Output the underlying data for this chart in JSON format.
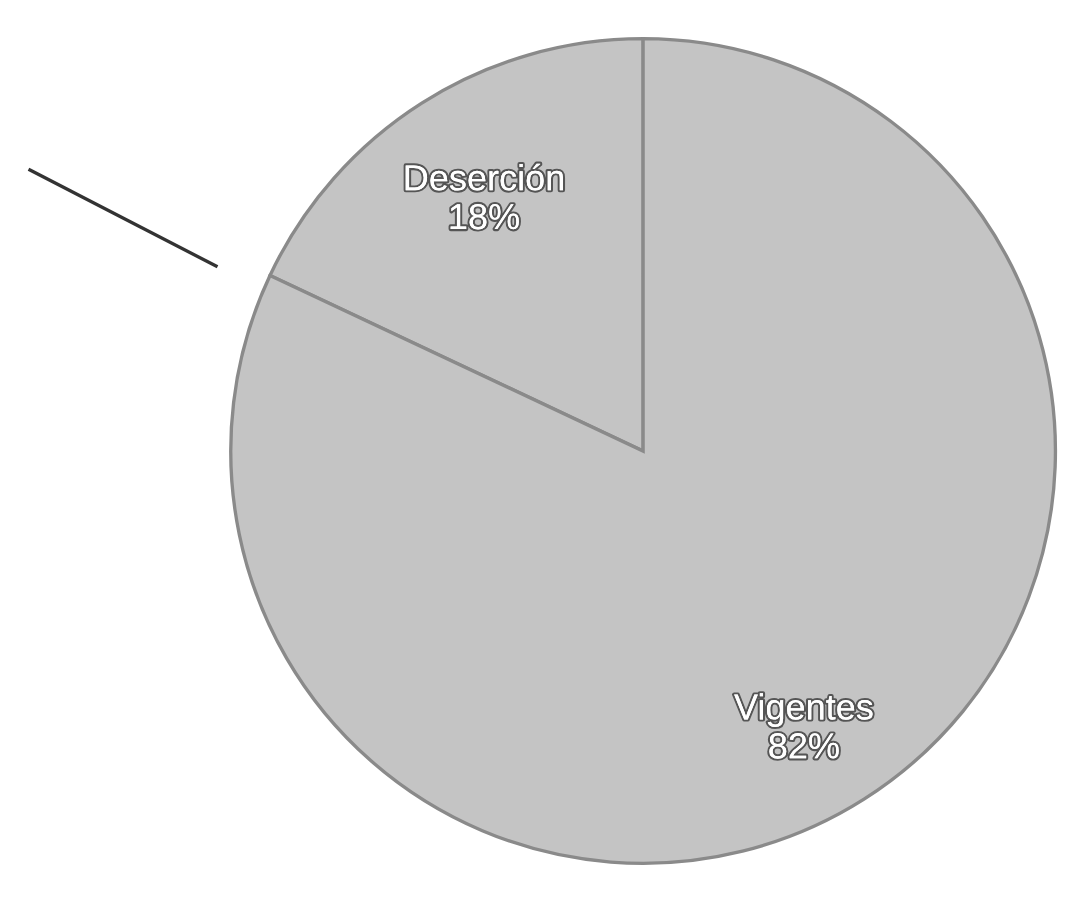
{
  "chart_data": {
    "type": "pie",
    "categories": [
      "Deserción",
      "Vigentes"
    ],
    "values": [
      18,
      82
    ],
    "colors": [
      "#c4c4c4",
      "#c4c4c4"
    ],
    "value_labels": [
      "18%",
      "82%"
    ]
  }
}
